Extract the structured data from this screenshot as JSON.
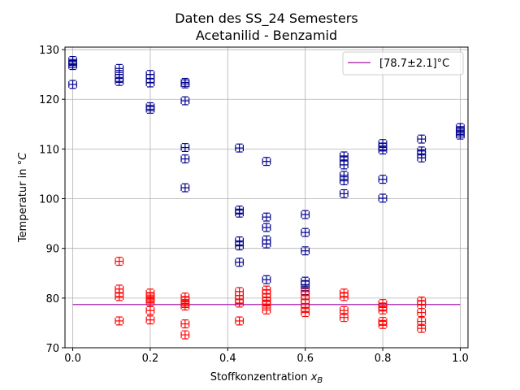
{
  "chart_data": {
    "type": "scatter",
    "title": "Daten des SS_24 Semesters",
    "subtitle": "Acetanilid - Benzamid",
    "xlabel_main": "Stoffkonzentration ",
    "xlabel_var": "x",
    "xlabel_sub": "B",
    "ylabel_main": "Temperatur in ",
    "ylabel_unit": "°C",
    "xlim": [
      -0.02,
      1.02
    ],
    "ylim": [
      70,
      130.5
    ],
    "xticks": [
      0.0,
      0.2,
      0.4,
      0.6,
      0.8,
      1.0
    ],
    "xtick_labels": [
      "0.0",
      "0.2",
      "0.4",
      "0.6",
      "0.8",
      "1.0"
    ],
    "yticks": [
      70,
      80,
      90,
      100,
      110,
      120,
      130
    ],
    "ytick_labels": [
      "70",
      "80",
      "90",
      "100",
      "110",
      "120",
      "130"
    ],
    "grid": true,
    "legend_position": "top-right",
    "error_bar_x": 0.01,
    "error_bar_y": 0.8,
    "reference_line": {
      "label": "[78.7±2.1]°C",
      "value": 78.7,
      "x_range": [
        0.0,
        1.0
      ],
      "color": "#b03db5"
    },
    "series": [
      {
        "color": "#00008b",
        "points": [
          [
            0.0,
            127.8
          ],
          [
            0.0,
            127.2
          ],
          [
            0.0,
            126.8
          ],
          [
            0.0,
            123.0
          ],
          [
            0.12,
            126.2
          ],
          [
            0.12,
            125.0
          ],
          [
            0.12,
            124.2
          ],
          [
            0.12,
            123.6
          ],
          [
            0.2,
            125.0
          ],
          [
            0.2,
            124.2
          ],
          [
            0.2,
            123.3
          ],
          [
            0.2,
            118.5
          ],
          [
            0.2,
            118.0
          ],
          [
            0.29,
            123.4
          ],
          [
            0.29,
            123.1
          ],
          [
            0.29,
            119.7
          ],
          [
            0.29,
            110.3
          ],
          [
            0.29,
            108.0
          ],
          [
            0.29,
            102.2
          ],
          [
            0.43,
            110.2
          ],
          [
            0.43,
            97.7
          ],
          [
            0.43,
            97.1
          ],
          [
            0.43,
            91.5
          ],
          [
            0.43,
            90.5
          ],
          [
            0.43,
            87.2
          ],
          [
            0.5,
            107.5
          ],
          [
            0.5,
            96.3
          ],
          [
            0.5,
            94.2
          ],
          [
            0.5,
            91.7
          ],
          [
            0.5,
            90.9
          ],
          [
            0.5,
            83.7
          ],
          [
            0.6,
            96.8
          ],
          [
            0.6,
            93.2
          ],
          [
            0.6,
            89.5
          ],
          [
            0.6,
            83.4
          ],
          [
            0.6,
            82.7
          ],
          [
            0.6,
            81.5
          ],
          [
            0.7,
            108.6
          ],
          [
            0.7,
            107.6
          ],
          [
            0.7,
            106.8
          ],
          [
            0.7,
            104.7
          ],
          [
            0.7,
            103.6
          ],
          [
            0.7,
            101.0
          ],
          [
            0.8,
            111.1
          ],
          [
            0.8,
            110.4
          ],
          [
            0.8,
            109.8
          ],
          [
            0.8,
            103.9
          ],
          [
            0.8,
            100.1
          ],
          [
            0.9,
            112.0
          ],
          [
            0.9,
            109.6
          ],
          [
            0.9,
            109.0
          ],
          [
            0.9,
            108.2
          ],
          [
            1.0,
            114.3
          ],
          [
            1.0,
            113.7
          ],
          [
            1.0,
            113.2
          ],
          [
            1.0,
            112.8
          ]
        ]
      },
      {
        "color": "#ff0000",
        "points": [
          [
            0.12,
            87.4
          ],
          [
            0.12,
            81.8
          ],
          [
            0.12,
            81.0
          ],
          [
            0.12,
            80.3
          ],
          [
            0.12,
            75.4
          ],
          [
            0.2,
            81.0
          ],
          [
            0.2,
            80.3
          ],
          [
            0.2,
            79.8
          ],
          [
            0.2,
            79.2
          ],
          [
            0.2,
            77.5
          ],
          [
            0.2,
            75.6
          ],
          [
            0.29,
            80.2
          ],
          [
            0.29,
            79.5
          ],
          [
            0.29,
            78.9
          ],
          [
            0.29,
            78.4
          ],
          [
            0.29,
            74.8
          ],
          [
            0.29,
            72.6
          ],
          [
            0.43,
            81.3
          ],
          [
            0.43,
            80.5
          ],
          [
            0.43,
            79.7
          ],
          [
            0.43,
            79.0
          ],
          [
            0.43,
            75.4
          ],
          [
            0.5,
            81.6
          ],
          [
            0.5,
            80.9
          ],
          [
            0.5,
            80.1
          ],
          [
            0.5,
            79.4
          ],
          [
            0.5,
            78.8
          ],
          [
            0.5,
            77.6
          ],
          [
            0.6,
            81.3
          ],
          [
            0.6,
            80.6
          ],
          [
            0.6,
            79.7
          ],
          [
            0.6,
            78.9
          ],
          [
            0.6,
            78.1
          ],
          [
            0.6,
            77.1
          ],
          [
            0.7,
            81.0
          ],
          [
            0.7,
            80.3
          ],
          [
            0.7,
            77.5
          ],
          [
            0.7,
            76.1
          ],
          [
            0.8,
            78.9
          ],
          [
            0.8,
            78.2
          ],
          [
            0.8,
            77.6
          ],
          [
            0.8,
            75.3
          ],
          [
            0.8,
            74.7
          ],
          [
            0.9,
            79.4
          ],
          [
            0.9,
            78.7
          ],
          [
            0.9,
            77.1
          ],
          [
            0.9,
            75.3
          ],
          [
            0.9,
            73.9
          ]
        ]
      }
    ]
  }
}
